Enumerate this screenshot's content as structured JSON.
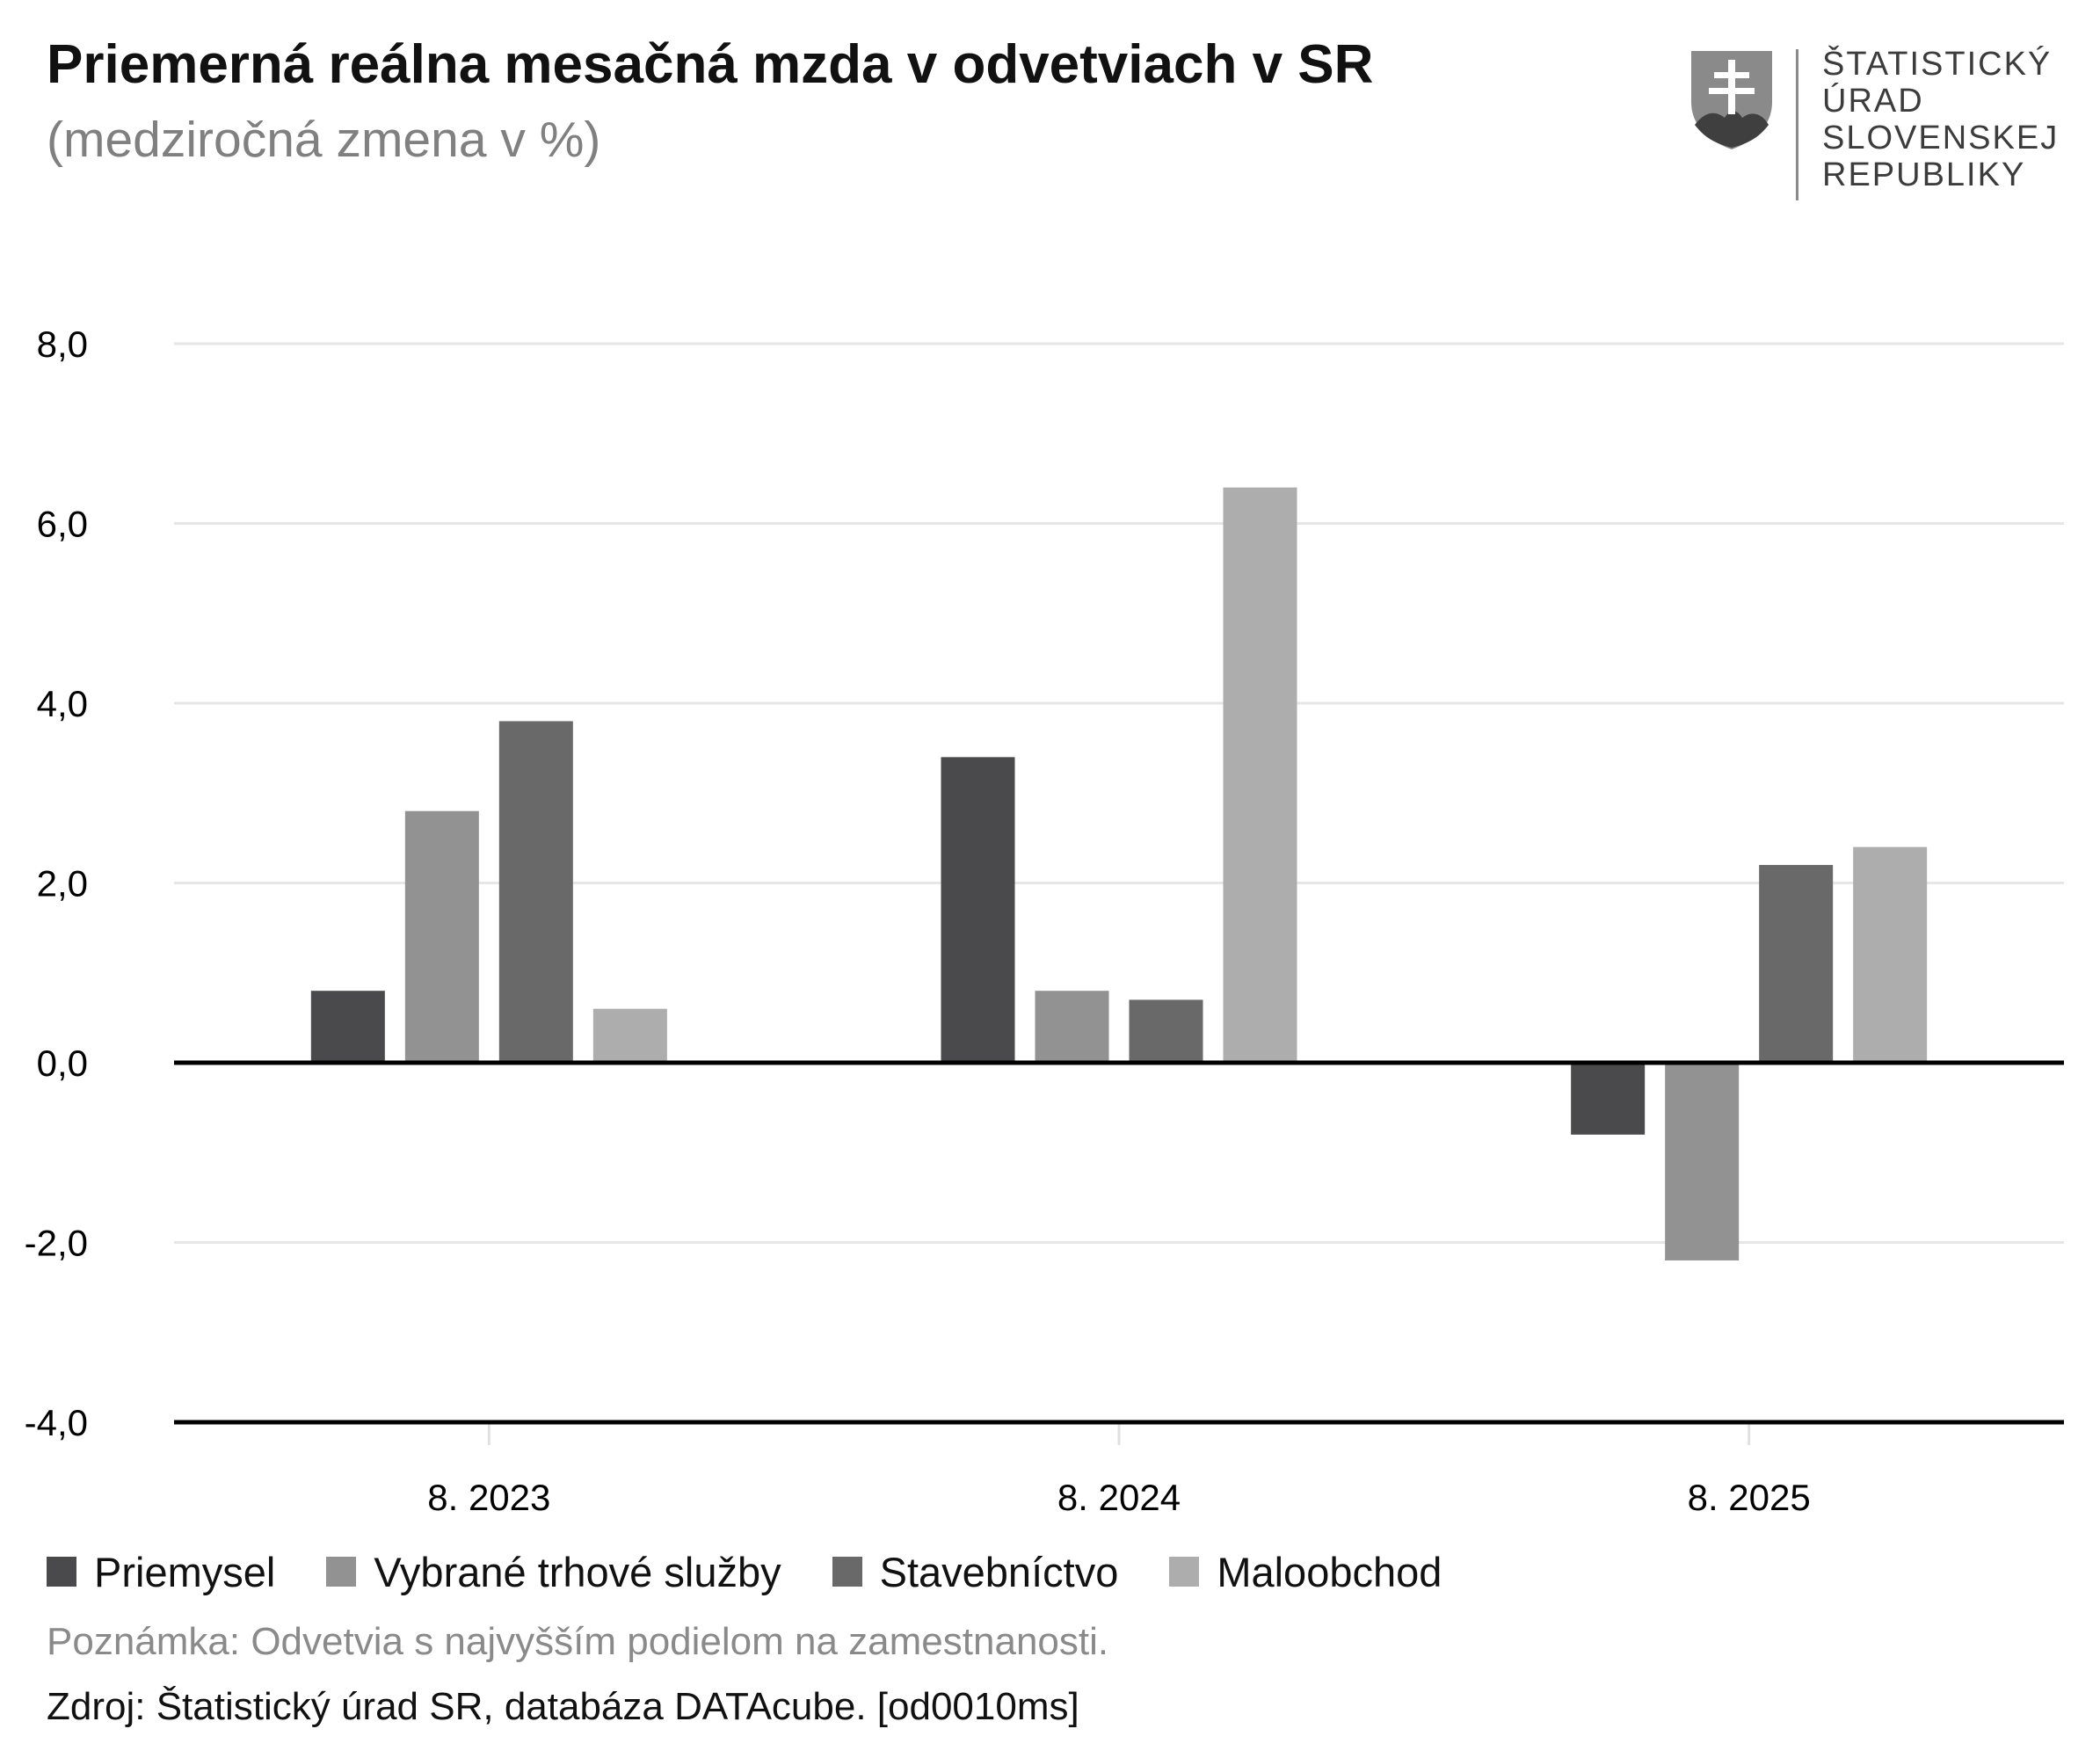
{
  "header": {
    "title": "Priemerná reálna mesačná mzda v odvetviach v SR",
    "subtitle": "(medziročná zmena v %)"
  },
  "logo": {
    "line1": "ŠTATISTICKÝ",
    "line2": "ÚRAD",
    "line3": "SLOVENSKEJ",
    "line4": "REPUBLIKY",
    "icon": "slovak-coat-of-arms-icon"
  },
  "chart_data": {
    "type": "bar",
    "title": "Priemerná reálna mesačná mzda v odvetviach v SR",
    "subtitle": "(medziročná zmena v %)",
    "categories": [
      "8. 2023",
      "8. 2024",
      "8. 2025"
    ],
    "series": [
      {
        "name": "Priemysel",
        "color": "#4a4a4c",
        "values": [
          0.8,
          3.4,
          -0.8
        ]
      },
      {
        "name": "Vybrané trhové služby",
        "color": "#929292",
        "values": [
          2.8,
          0.8,
          -2.2
        ]
      },
      {
        "name": "Stavebníctvo",
        "color": "#696969",
        "values": [
          3.8,
          0.7,
          2.2
        ]
      },
      {
        "name": "Maloobchod",
        "color": "#adadad",
        "values": [
          0.6,
          6.4,
          2.4
        ]
      }
    ],
    "ylim": [
      -4,
      8
    ],
    "yticks": [
      "-4,0",
      "-2,0",
      "0,0",
      "2,0",
      "4,0",
      "6,0",
      "8,0"
    ],
    "grid": true,
    "legend_position": "bottom"
  },
  "legend": {
    "items": [
      {
        "label": "Priemysel",
        "color": "#4a4a4c"
      },
      {
        "label": "Vybrané trhové služby",
        "color": "#929292"
      },
      {
        "label": "Stavebníctvo",
        "color": "#696969"
      },
      {
        "label": "Maloobchod",
        "color": "#adadad"
      }
    ]
  },
  "footer": {
    "note": "Poznámka: Odvetvia s najvyšším podielom na zamestnanosti.",
    "source": "Zdroj: Štatistický úrad SR, databáza DATAcube. [od0010ms]"
  }
}
